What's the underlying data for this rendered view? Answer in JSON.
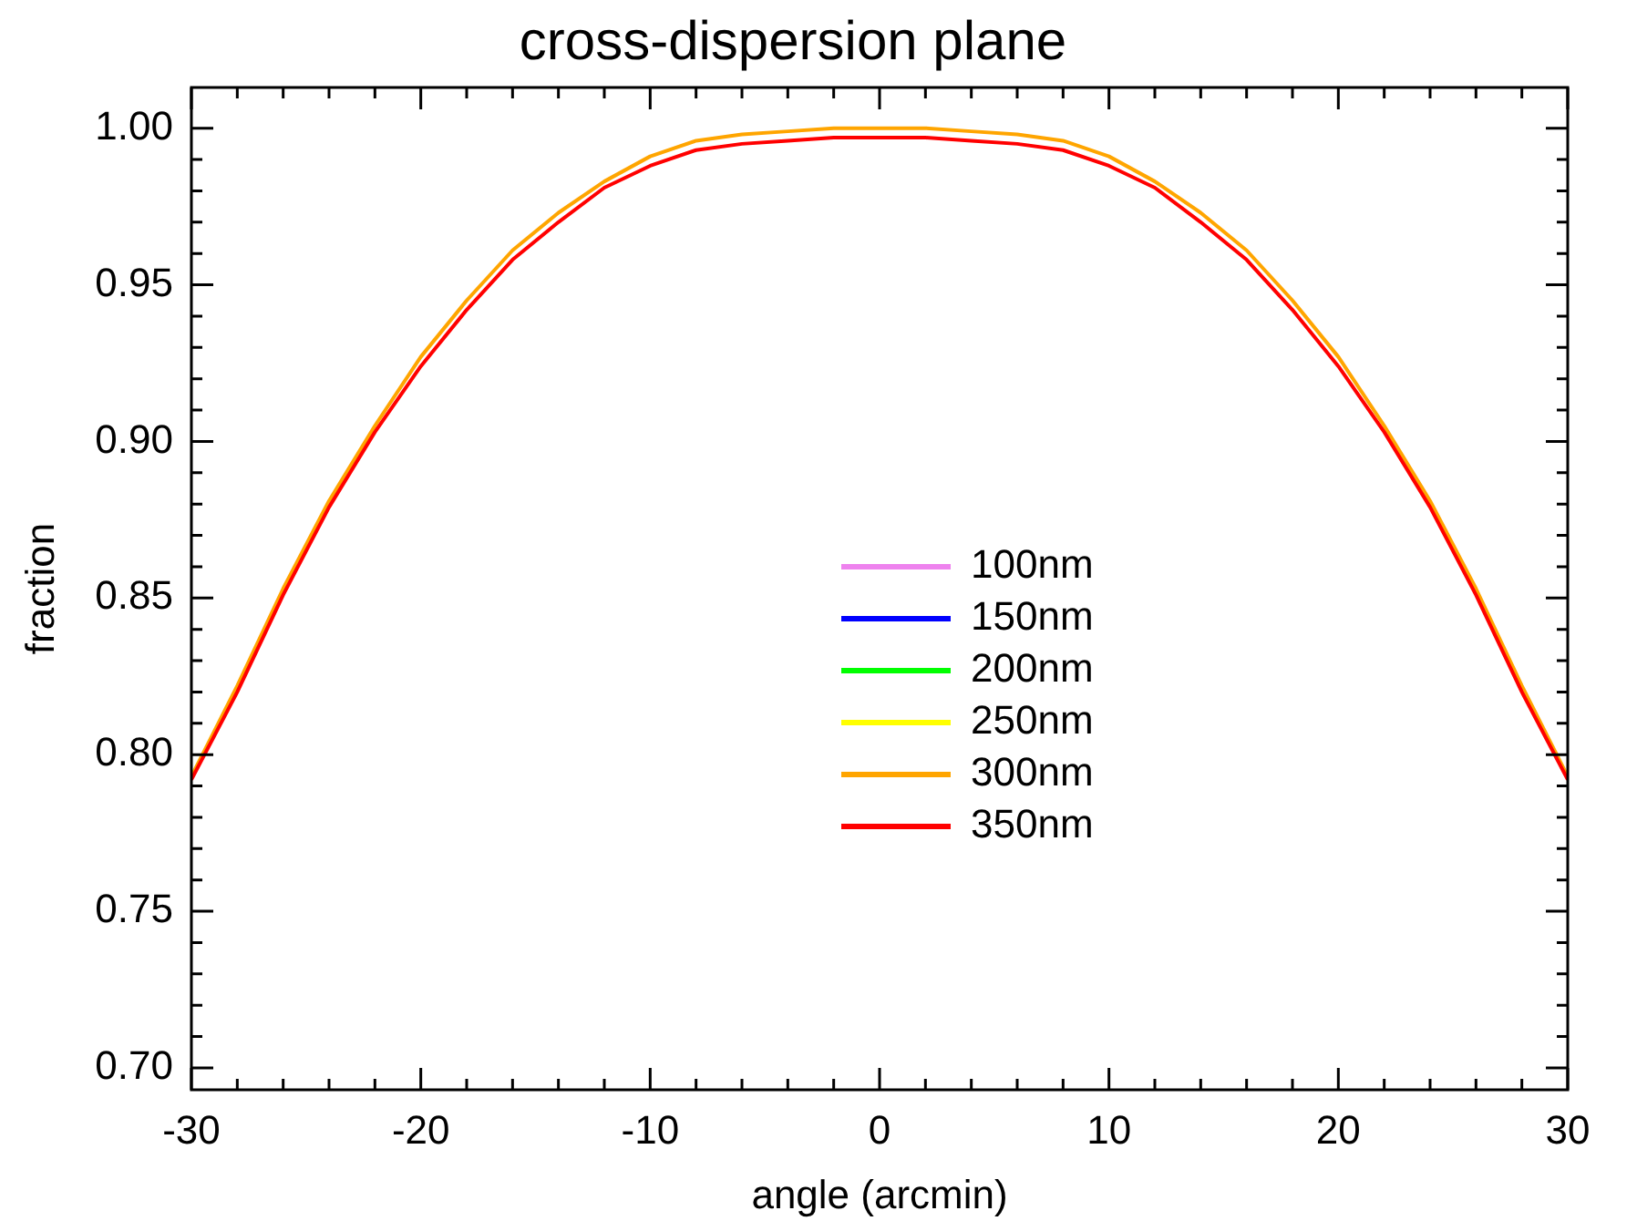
{
  "chart_data": {
    "type": "line",
    "title": "cross-dispersion plane",
    "xlabel": "angle (arcmin)",
    "ylabel": "fraction",
    "x": [
      -30,
      -28,
      -26,
      -24,
      -22,
      -20,
      -18,
      -16,
      -14,
      -12,
      -10,
      -8,
      -6,
      -4,
      -2,
      0,
      2,
      4,
      6,
      8,
      10,
      12,
      14,
      16,
      18,
      20,
      22,
      24,
      26,
      28,
      30
    ],
    "series": [
      {
        "name": "100nm",
        "color": "#ee82ee",
        "values": [
          null,
          null,
          null,
          null,
          null,
          null,
          null,
          null,
          null,
          null,
          null,
          null,
          null,
          null,
          null,
          null,
          null,
          null,
          null,
          null,
          null,
          null,
          null,
          null,
          null,
          null,
          null,
          null,
          null,
          null,
          null
        ]
      },
      {
        "name": "150nm",
        "color": "#0000ff",
        "values": [
          null,
          null,
          null,
          null,
          null,
          null,
          null,
          null,
          null,
          null,
          null,
          null,
          null,
          null,
          null,
          null,
          null,
          null,
          null,
          null,
          null,
          null,
          null,
          null,
          null,
          null,
          null,
          null,
          null,
          null,
          null
        ]
      },
      {
        "name": "200nm",
        "color": "#00ff00",
        "values": [
          null,
          null,
          null,
          null,
          null,
          null,
          null,
          null,
          null,
          null,
          null,
          null,
          null,
          null,
          null,
          null,
          null,
          null,
          null,
          null,
          null,
          null,
          null,
          null,
          null,
          null,
          null,
          null,
          null,
          null,
          null
        ]
      },
      {
        "name": "250nm",
        "color": "#ffff00",
        "values": [
          null,
          null,
          null,
          null,
          null,
          null,
          null,
          null,
          null,
          null,
          null,
          null,
          null,
          null,
          null,
          null,
          null,
          null,
          null,
          null,
          null,
          null,
          null,
          null,
          null,
          null,
          null,
          null,
          null,
          null,
          null
        ]
      },
      {
        "name": "300nm",
        "color": "#ffa500",
        "values": [
          0.793,
          0.822,
          0.853,
          0.881,
          0.905,
          0.927,
          0.945,
          0.961,
          0.973,
          0.983,
          0.991,
          0.996,
          0.998,
          0.999,
          1.0,
          1.0,
          1.0,
          0.999,
          0.998,
          0.996,
          0.991,
          0.983,
          0.973,
          0.961,
          0.945,
          0.927,
          0.905,
          0.881,
          0.853,
          0.822,
          0.793
        ]
      },
      {
        "name": "350nm",
        "color": "#ff0000",
        "values": [
          0.792,
          0.82,
          0.851,
          0.879,
          0.903,
          0.924,
          0.942,
          0.958,
          0.97,
          0.981,
          0.988,
          0.993,
          0.995,
          0.996,
          0.997,
          0.997,
          0.997,
          0.996,
          0.995,
          0.993,
          0.988,
          0.981,
          0.97,
          0.958,
          0.942,
          0.924,
          0.903,
          0.879,
          0.851,
          0.82,
          0.792
        ]
      }
    ],
    "xlim": [
      -30,
      30
    ],
    "xticks": [
      -30,
      {
        "value": -28,
        "label": null
      },
      {
        "value": -26,
        "label": null
      },
      {
        "value": -24,
        "label": null
      },
      {
        "value": -22,
        "label": null
      },
      -20,
      {
        "value": -18,
        "label": null
      },
      {
        "value": -16,
        "label": null
      },
      {
        "value": -14,
        "label": null
      },
      {
        "value": -12,
        "label": null
      },
      -10,
      {
        "value": -8,
        "label": null
      },
      {
        "value": -6,
        "label": null
      },
      {
        "value": -4,
        "label": null
      },
      {
        "value": -2,
        "label": null
      },
      {
        "value": 0,
        "label": "0"
      },
      {
        "value": 2,
        "label": null
      },
      {
        "value": 4,
        "label": null
      },
      {
        "value": 6,
        "label": null
      },
      {
        "value": 8,
        "label": null
      },
      10,
      {
        "value": 12,
        "label": null
      },
      {
        "value": 14,
        "label": null
      },
      {
        "value": 16,
        "label": null
      },
      {
        "value": 18,
        "label": null
      },
      20,
      {
        "value": 22,
        "label": null
      },
      {
        "value": 24,
        "label": null
      },
      {
        "value": 26,
        "label": null
      },
      {
        "value": 28,
        "label": null
      },
      30
    ],
    "ylim": [
      0.693,
      1.013
    ],
    "yticks": [
      {
        "value": 0.7,
        "label": "0.70"
      },
      {
        "value": 0.71,
        "label": null
      },
      {
        "value": 0.72,
        "label": null
      },
      {
        "value": 0.73,
        "label": null
      },
      {
        "value": 0.74,
        "label": null
      },
      {
        "value": 0.75,
        "label": "0.75"
      },
      {
        "value": 0.76,
        "label": null
      },
      {
        "value": 0.77,
        "label": null
      },
      {
        "value": 0.78,
        "label": null
      },
      {
        "value": 0.79,
        "label": null
      },
      {
        "value": 0.8,
        "label": "0.80"
      },
      {
        "value": 0.81,
        "label": null
      },
      {
        "value": 0.82,
        "label": null
      },
      {
        "value": 0.83,
        "label": null
      },
      {
        "value": 0.84,
        "label": null
      },
      {
        "value": 0.85,
        "label": "0.85"
      },
      {
        "value": 0.86,
        "label": null
      },
      {
        "value": 0.87,
        "label": null
      },
      {
        "value": 0.88,
        "label": null
      },
      {
        "value": 0.89,
        "label": null
      },
      {
        "value": 0.9,
        "label": "0.90"
      },
      {
        "value": 0.91,
        "label": null
      },
      {
        "value": 0.92,
        "label": null
      },
      {
        "value": 0.93,
        "label": null
      },
      {
        "value": 0.94,
        "label": null
      },
      {
        "value": 0.95,
        "label": "0.95"
      },
      {
        "value": 0.96,
        "label": null
      },
      {
        "value": 0.97,
        "label": null
      },
      {
        "value": 0.98,
        "label": null
      },
      {
        "value": 0.99,
        "label": null
      },
      {
        "value": 1.0,
        "label": "1.00"
      }
    ],
    "grid": false,
    "legend": "center",
    "marker": "none",
    "line_style": "solid"
  }
}
